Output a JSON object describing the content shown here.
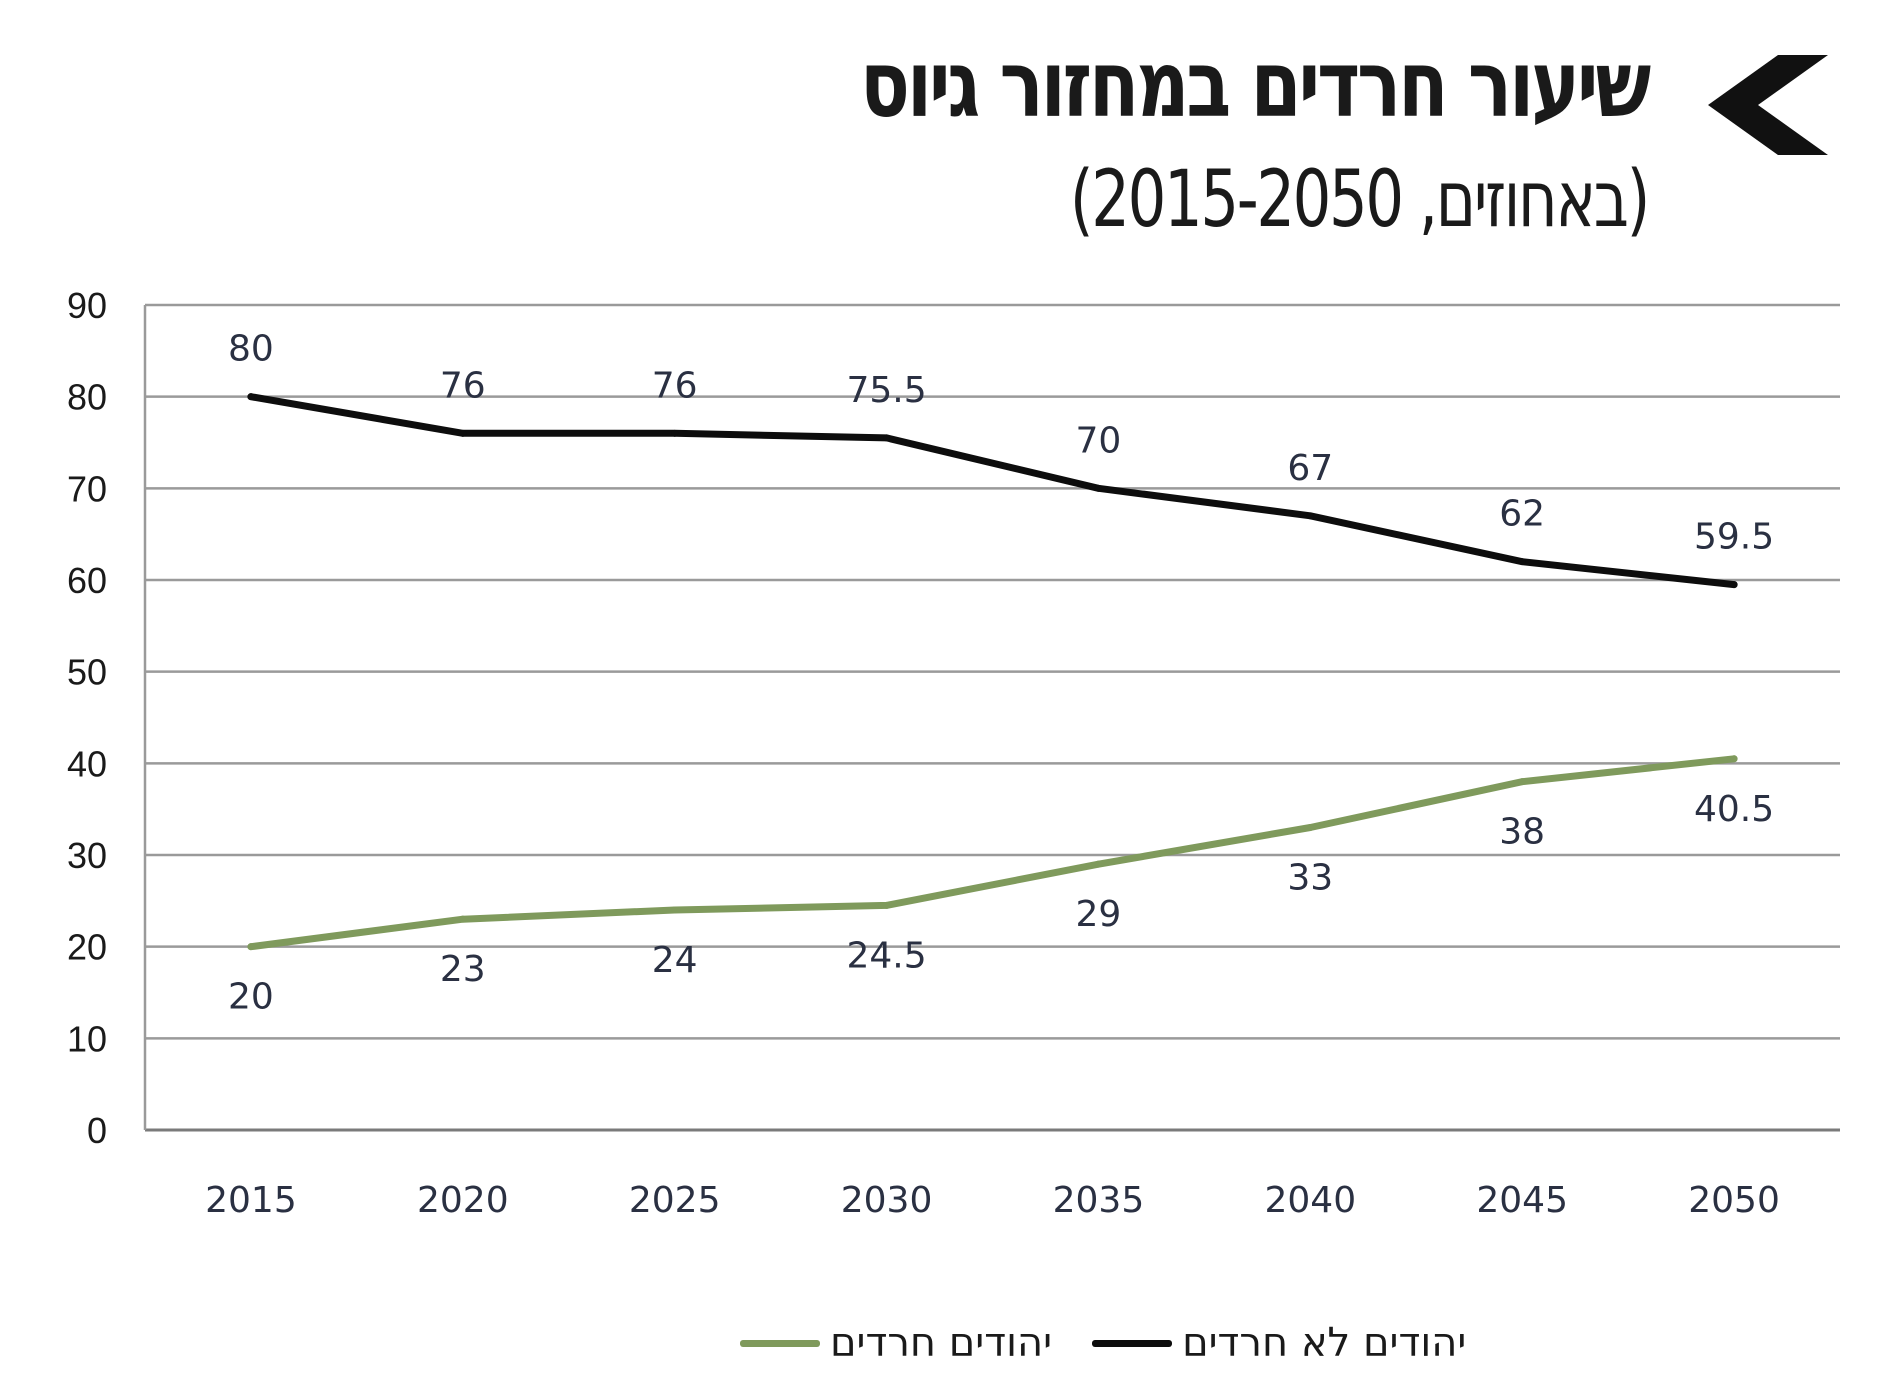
{
  "header": {
    "title": "שיעור חרדים במחזור גיוס",
    "subtitle": "(באחוזים, 2015-2050)"
  },
  "icons": {
    "back": "chevron-left-icon"
  },
  "chart_data": {
    "type": "line",
    "title": "שיעור חרדים במחזור גיוס",
    "subtitle": "(באחוזים, 2015-2050)",
    "categories": [
      "2015",
      "2020",
      "2025",
      "2030",
      "2035",
      "2040",
      "2045",
      "2050"
    ],
    "ylim": [
      0,
      90
    ],
    "yticks": [
      0,
      10,
      20,
      30,
      40,
      50,
      60,
      70,
      80,
      90
    ],
    "xlabel": "",
    "ylabel": "",
    "grid": true,
    "legend_position": "bottom",
    "series": [
      {
        "name": "יהודים לא חרדים",
        "values": [
          80,
          76,
          76,
          75.5,
          70,
          67,
          62,
          59.5
        ],
        "labels": [
          "80",
          "76",
          "76",
          "75.5",
          "70",
          "67",
          "62",
          "59.5"
        ],
        "label_position": "above",
        "color": "#0d0d0d"
      },
      {
        "name": "יהודים חרדים",
        "values": [
          20,
          23,
          24,
          24.5,
          29,
          33,
          38,
          40.5
        ],
        "labels": [
          "20",
          "23",
          "24",
          "24.5",
          "29",
          "33",
          "38",
          "40.5"
        ],
        "label_position": "below",
        "color": "#7f9a5c"
      }
    ]
  }
}
